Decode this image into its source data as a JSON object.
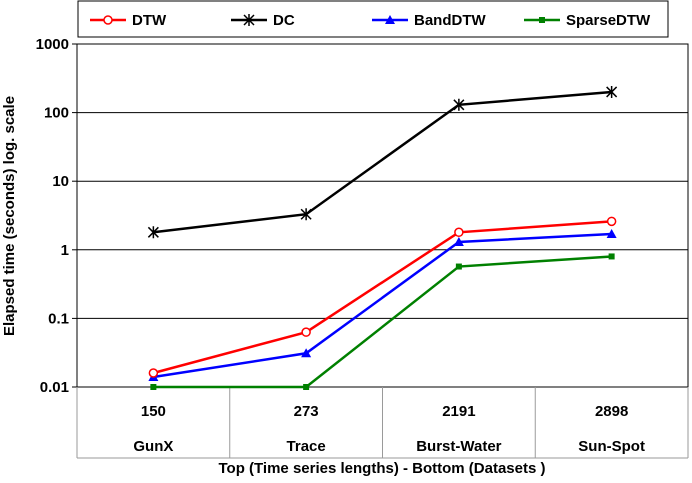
{
  "chart_data": {
    "type": "line",
    "x_top": [
      "150",
      "273",
      "2191",
      "2898"
    ],
    "x_bottom": [
      "GunX",
      "Trace",
      "Burst-Water",
      "Sun-Spot"
    ],
    "xlabel": "Top (Time series lengths) - Bottom (Datasets )",
    "ylabel": "Elapsed time (seconds) log. scale",
    "yscale": "log",
    "ylim": [
      0.01,
      1000
    ],
    "yticks": [
      {
        "value": 1000,
        "label": "1000"
      },
      {
        "value": 100,
        "label": "100"
      },
      {
        "value": 10,
        "label": "10"
      },
      {
        "value": 1,
        "label": "1"
      },
      {
        "value": 0.1,
        "label": "0.1"
      },
      {
        "value": 0.01,
        "label": "0.01"
      }
    ],
    "legend_position": "top",
    "series": [
      {
        "name": "DTW",
        "color": "#ff0000",
        "marker": "circle-open",
        "values": [
          0.016,
          0.063,
          1.8,
          2.6
        ]
      },
      {
        "name": "DC",
        "color": "#000000",
        "marker": "star",
        "values": [
          1.8,
          3.3,
          130,
          200
        ]
      },
      {
        "name": "BandDTW",
        "color": "#0000ff",
        "marker": "triangle",
        "values": [
          0.014,
          0.031,
          1.3,
          1.7
        ]
      },
      {
        "name": "SparseDTW",
        "color": "#008000",
        "marker": "square",
        "values": [
          0.01,
          0.01,
          0.57,
          0.8
        ]
      }
    ]
  }
}
